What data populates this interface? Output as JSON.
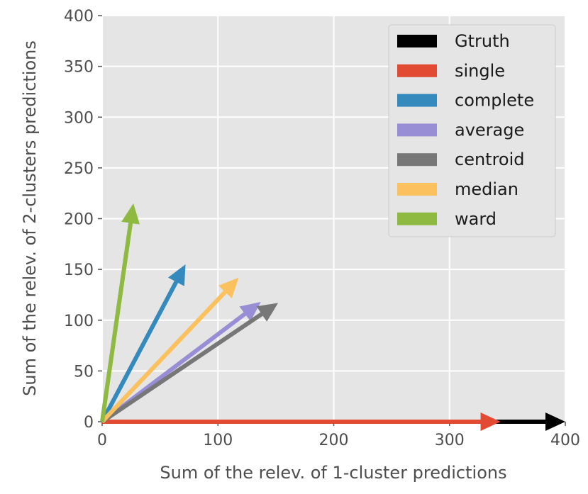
{
  "chart_data": {
    "type": "quiver",
    "xlabel": "Sum of the relev. of 1-cluster predictions",
    "ylabel": "Sum of the relev. of 2-clusters predictions",
    "xlim": [
      0,
      400
    ],
    "ylim": [
      0,
      400
    ],
    "x_ticks": [
      "0",
      "100",
      "200",
      "300",
      "400"
    ],
    "y_ticks": [
      "0",
      "50",
      "100",
      "150",
      "200",
      "250",
      "300",
      "350",
      "400"
    ],
    "x_tick_values": [
      0,
      100,
      200,
      300,
      400
    ],
    "y_tick_values": [
      0,
      50,
      100,
      150,
      200,
      250,
      300,
      350,
      400
    ],
    "grid": true,
    "legend_position": "top-right",
    "background": "#e5e5e5",
    "series": [
      {
        "name": "Gtruth",
        "color": "#000000",
        "x": 400,
        "y": 0
      },
      {
        "name": "single",
        "color": "#e24a33",
        "x": 344,
        "y": 0
      },
      {
        "name": "complete",
        "color": "#348abd",
        "x": 72,
        "y": 155
      },
      {
        "name": "average",
        "color": "#988ed5",
        "x": 137,
        "y": 118
      },
      {
        "name": "centroid",
        "color": "#777777",
        "x": 152,
        "y": 117
      },
      {
        "name": "median",
        "color": "#fbc15e",
        "x": 118,
        "y": 142
      },
      {
        "name": "ward",
        "color": "#8eba42",
        "x": 27,
        "y": 215
      }
    ]
  }
}
